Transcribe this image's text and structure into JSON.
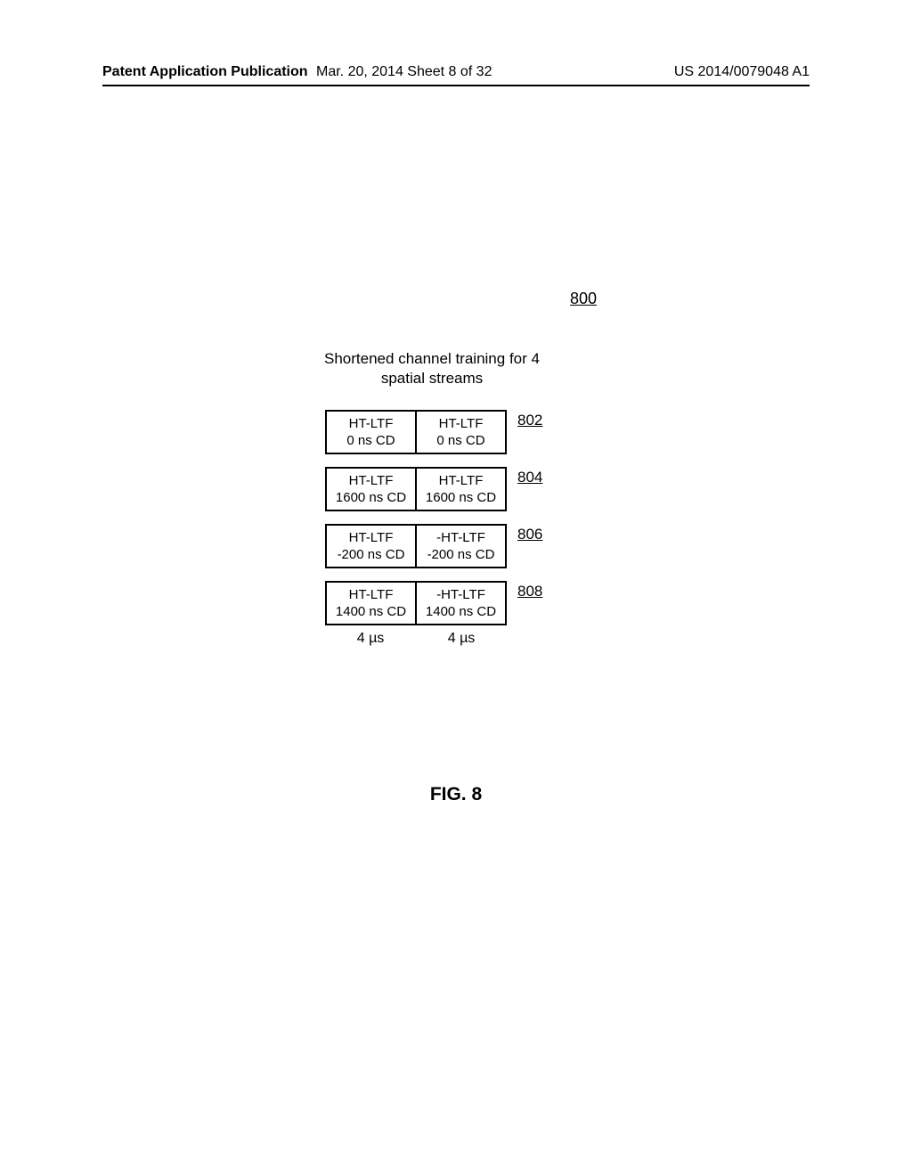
{
  "header": {
    "left": "Patent Application Publication",
    "center": "Mar. 20, 2014  Sheet 8 of 32",
    "right": "US 2014/0079048 A1"
  },
  "figure_ref": "800",
  "diagram_title": "Shortened channel training for 4 spatial streams",
  "streams": [
    {
      "label": "802",
      "left": {
        "line1": "HT-LTF",
        "line2": "0 ns CD"
      },
      "right": {
        "line1": "HT-LTF",
        "line2": "0 ns CD"
      }
    },
    {
      "label": "804",
      "left": {
        "line1": "HT-LTF",
        "line2": "1600 ns CD"
      },
      "right": {
        "line1": "HT-LTF",
        "line2": "1600 ns CD"
      }
    },
    {
      "label": "806",
      "left": {
        "line1": "HT-LTF",
        "line2": "-200 ns CD"
      },
      "right": {
        "line1": "-HT-LTF",
        "line2": "-200 ns CD"
      }
    },
    {
      "label": "808",
      "left": {
        "line1": "HT-LTF",
        "line2": "1400 ns CD"
      },
      "right": {
        "line1": "-HT-LTF",
        "line2": "1400 ns CD"
      }
    }
  ],
  "time_labels": {
    "left": "4 µs",
    "right": "4 µs"
  },
  "figure_caption": "FIG. 8"
}
